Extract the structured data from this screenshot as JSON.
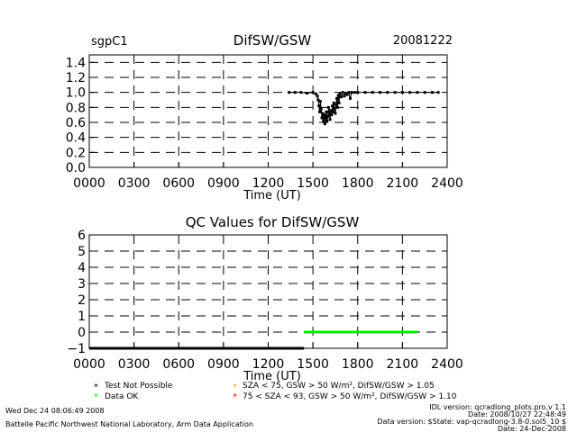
{
  "header": {
    "site": "sgpC1",
    "title": "DifSW/GSW",
    "date": "20081222"
  },
  "chart_data": [
    {
      "type": "scatter",
      "title": "DifSW/GSW",
      "xlabel": "Time (UT)",
      "ylabel": "",
      "xlim": [
        0,
        2400
      ],
      "ylim": [
        0,
        1.5
      ],
      "x_ticks": [
        0,
        300,
        600,
        900,
        1200,
        1500,
        1800,
        2100,
        2400
      ],
      "x_tick_labels": [
        "0000",
        "0300",
        "0600",
        "0900",
        "1200",
        "1500",
        "1800",
        "2100",
        "2400"
      ],
      "y_ticks": [
        0,
        0.2,
        0.4,
        0.6,
        0.8,
        1.0,
        1.2,
        1.4
      ],
      "y_tick_labels": [
        "0.0",
        "0.2",
        "0.4",
        "0.6",
        "0.8",
        "1.0",
        "1.2",
        "1.4"
      ],
      "grid": true,
      "series": [
        {
          "color": "#000000",
          "x": [
            1340,
            1380,
            1420,
            1460,
            1500,
            1520,
            1530,
            1535,
            1540,
            1545,
            1550,
            1555,
            1560,
            1565,
            1570,
            1575,
            1580,
            1585,
            1590,
            1595,
            1600,
            1605,
            1610,
            1615,
            1620,
            1625,
            1630,
            1635,
            1640,
            1645,
            1650,
            1655,
            1660,
            1665,
            1670,
            1675,
            1680,
            1690,
            1700,
            1710,
            1720,
            1730,
            1740,
            1750,
            1760,
            1780,
            1800,
            1850,
            1900,
            1950,
            2000,
            2050,
            2100,
            2150,
            2200,
            2250,
            2300,
            2340
          ],
          "y": [
            1.0,
            1.0,
            1.0,
            0.99,
            1.0,
            0.98,
            0.95,
            0.9,
            0.82,
            0.74,
            0.88,
            0.78,
            0.66,
            0.72,
            0.62,
            0.7,
            0.58,
            0.66,
            0.74,
            0.62,
            0.68,
            0.8,
            0.72,
            0.64,
            0.76,
            0.7,
            0.82,
            0.74,
            0.86,
            0.78,
            0.72,
            0.84,
            0.92,
            0.8,
            0.96,
            0.86,
            0.98,
            0.94,
            1.0,
            0.95,
            0.99,
            0.97,
            1.0,
            0.92,
            1.0,
            1.0,
            1.0,
            1.0,
            1.0,
            1.0,
            1.0,
            1.0,
            1.0,
            1.0,
            1.0,
            1.0,
            1.0,
            1.0
          ]
        }
      ]
    },
    {
      "type": "line",
      "title": "QC Values for DifSW/GSW",
      "xlabel": "Time (UT)",
      "ylabel": "",
      "xlim": [
        0,
        2400
      ],
      "ylim": [
        -1,
        6
      ],
      "x_ticks": [
        0,
        300,
        600,
        900,
        1200,
        1500,
        1800,
        2100,
        2400
      ],
      "x_tick_labels": [
        "0000",
        "0300",
        "0600",
        "0900",
        "1200",
        "1500",
        "1800",
        "2100",
        "2400"
      ],
      "y_ticks": [
        -1,
        0,
        1,
        2,
        3,
        4,
        5,
        6
      ],
      "y_tick_labels": [
        "−1",
        "0",
        "1",
        "2",
        "3",
        "4",
        "5",
        "6"
      ],
      "grid": true,
      "series": [
        {
          "color": "#000000",
          "x": [
            0,
            1440
          ],
          "y": [
            -1,
            -1
          ]
        },
        {
          "color": "#00ee00",
          "x": [
            1440,
            2200
          ],
          "y": [
            0,
            0
          ]
        }
      ]
    }
  ],
  "legend": {
    "items": [
      {
        "marker": "*",
        "color": "#000000",
        "label": "Test Not Possible"
      },
      {
        "marker": "*",
        "color": "#00ee00",
        "label": "Data OK"
      },
      {
        "marker": "*",
        "color": "#ff9900",
        "label": "SZA < 75, GSW > 50 W/m², DifSW/GSW > 1.05"
      },
      {
        "marker": "*",
        "color": "#ff0000",
        "label": "75 < SZA < 93, GSW > 50 W/m², DifSW/GSW > 1.10"
      }
    ]
  },
  "footer": {
    "timestamp": "Wed Dec 24 08:06:49 2008",
    "lab": "Battelle Pacific Northwest National Laboratory, Arm Data Application",
    "idl_version": "IDL version: qcradlong_plots.pro,v 1.1",
    "file_date": "Date: 2008/10/27 22:48:49",
    "data_version": "Data version: $State: vap-qcradlong-3.8-0.sol5_10 $",
    "proc_date": "Date: 24-Dec-2008"
  }
}
